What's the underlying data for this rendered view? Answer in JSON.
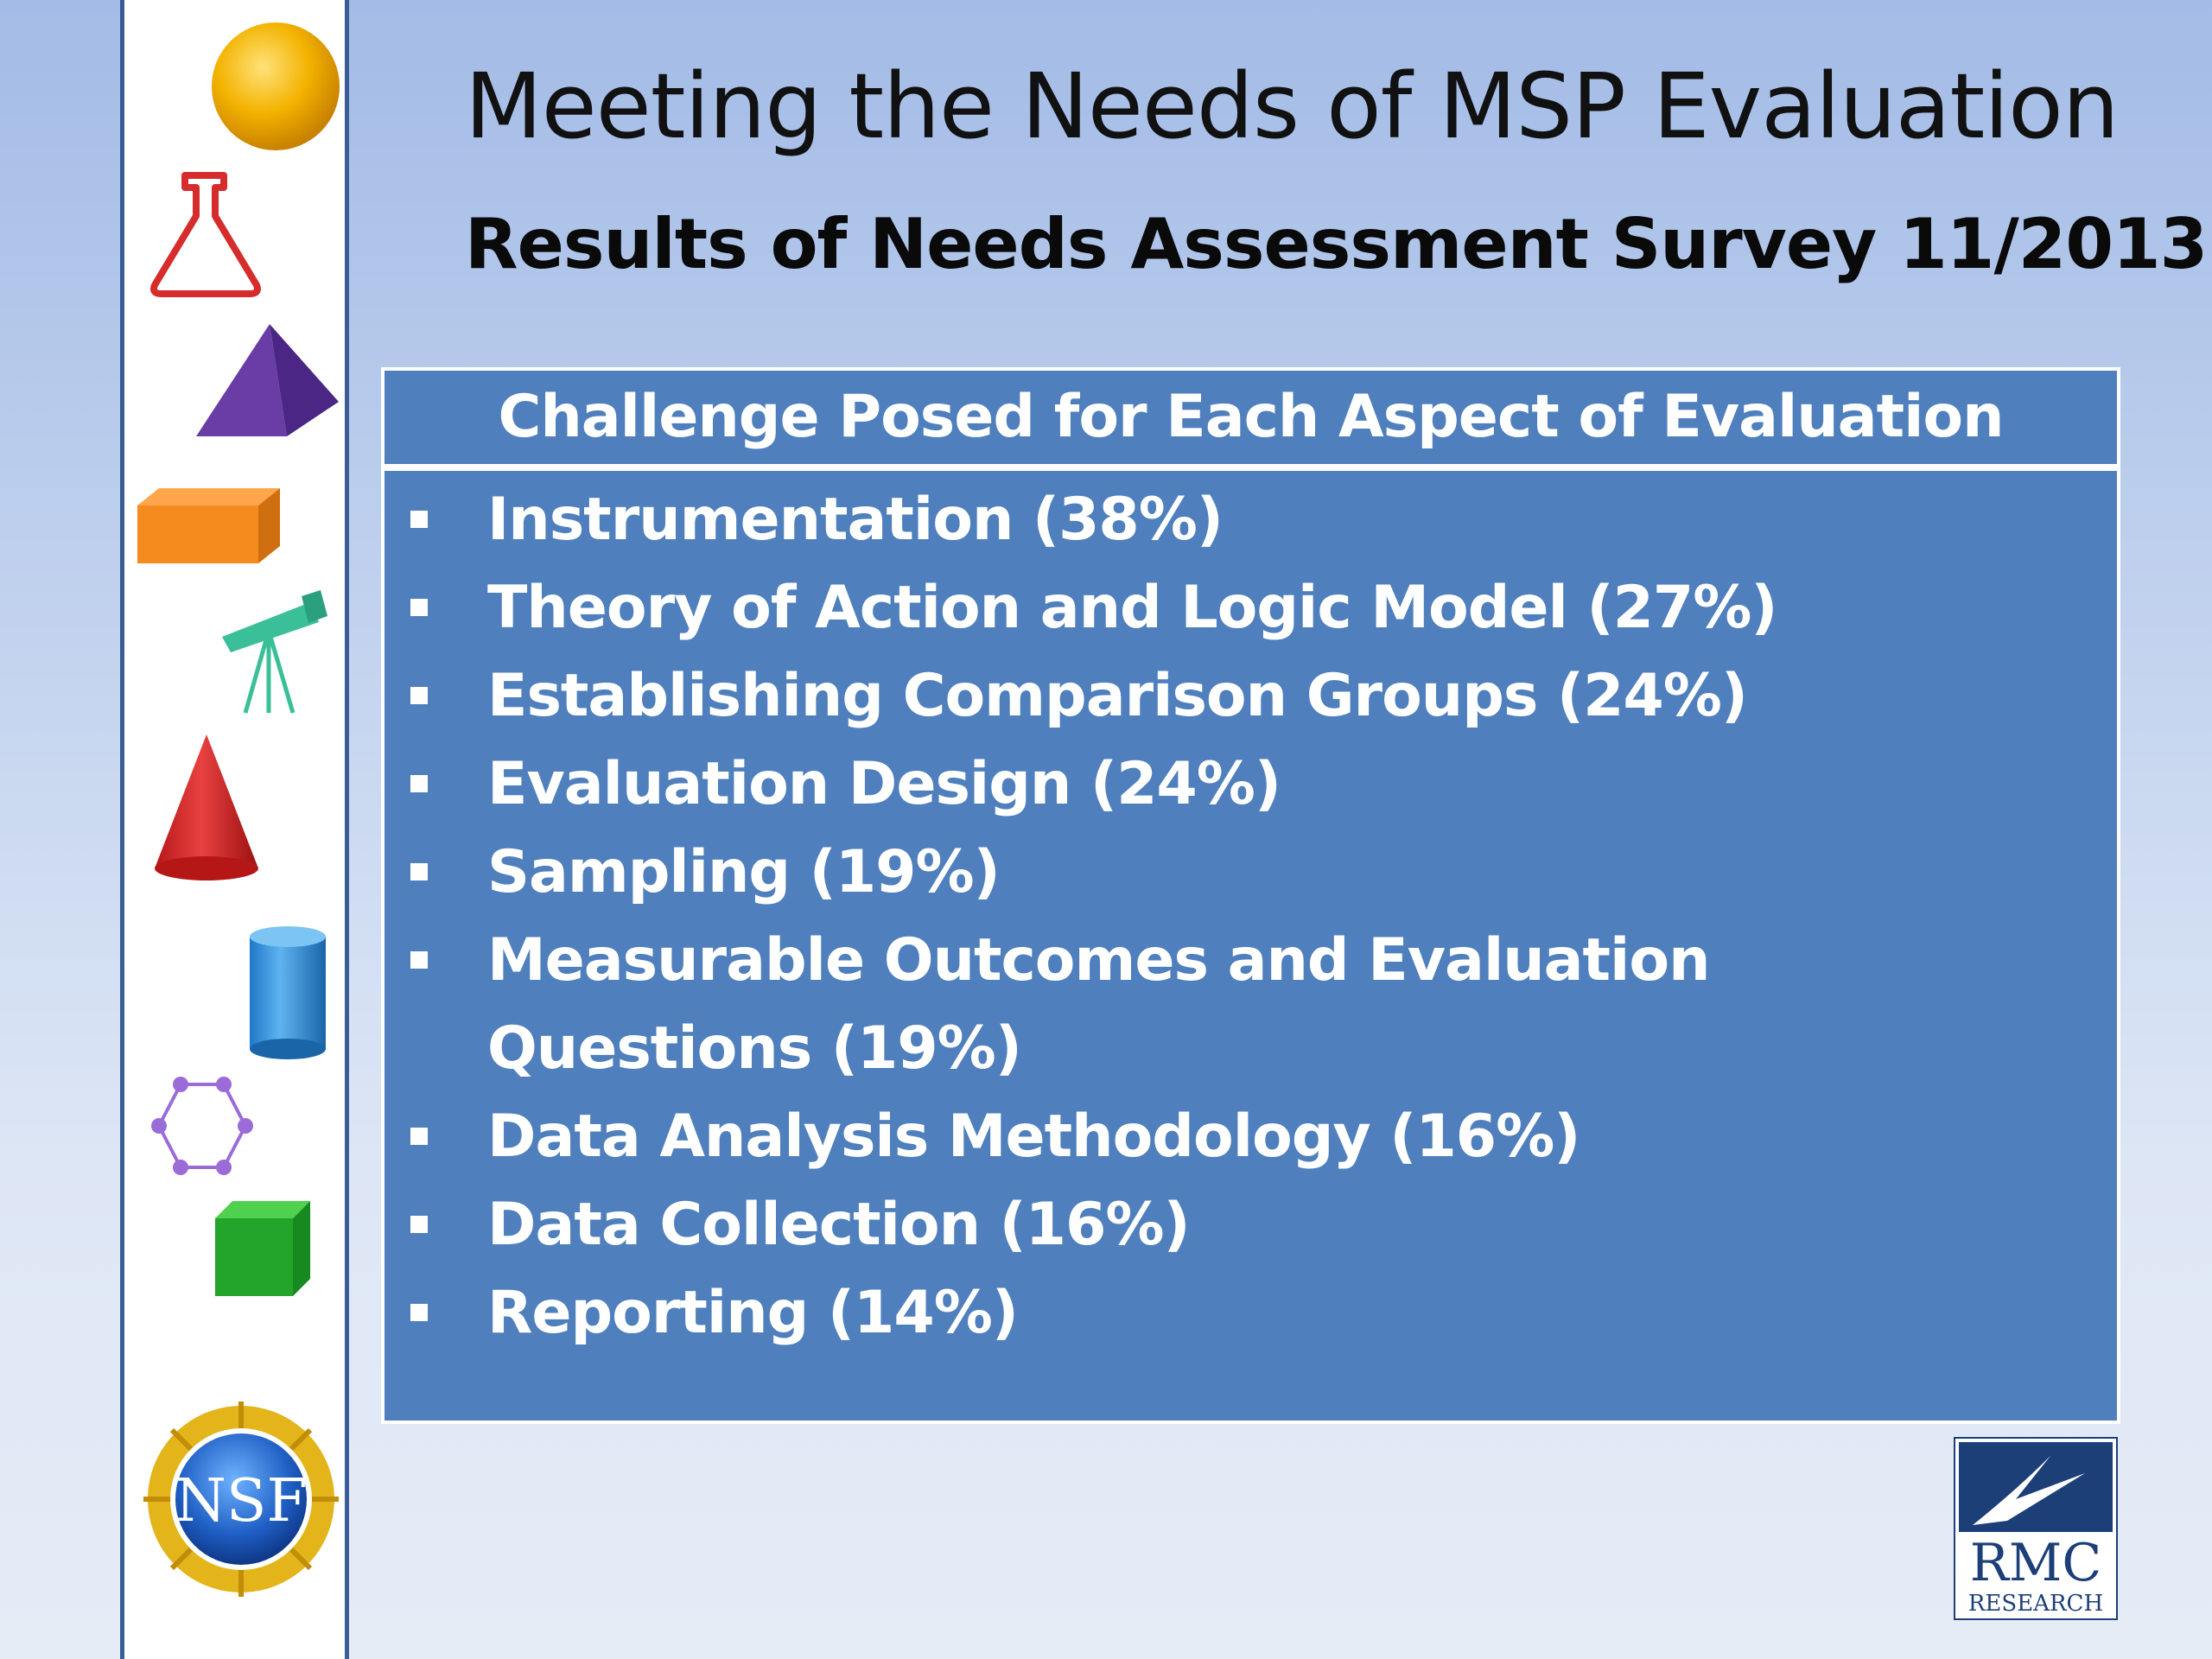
{
  "slide": {
    "title": "Meeting the Needs of MSP Evaluation",
    "subtitle": "Results of Needs Assessment Survey 11/2013"
  },
  "challenge_box": {
    "header": "Challenge Posed for Each Aspect of Evaluation",
    "items": [
      {
        "label": "Instrumentation (38%)"
      },
      {
        "label": "Theory of Action and Logic Model (27%)"
      },
      {
        "label": "Establishing Comparison Groups (24%)"
      },
      {
        "label": "Evaluation Design (24%)"
      },
      {
        "label": "Sampling (19%)"
      },
      {
        "label": "Measurable Outcomes and Evaluation Questions (19%)"
      },
      {
        "label": "Data Analysis Methodology (16%)"
      },
      {
        "label": "Data Collection (16%)"
      },
      {
        "label": "Reporting (14%)"
      }
    ]
  },
  "sidebar_icons": [
    "sphere-icon",
    "flask-icon",
    "pyramid-icon",
    "prism-icon",
    "telescope-icon",
    "cone-icon",
    "cylinder-icon",
    "hexagon-molecule-icon",
    "cube-icon"
  ],
  "logos": {
    "nsf_text": "NSF",
    "rmc_text": "RMC",
    "rmc_sub": "RESEARCH"
  },
  "colors": {
    "box_fill": "#4f80bd",
    "sidebar_border": "#3a5d96",
    "rmc_blue": "#1d3f78"
  }
}
